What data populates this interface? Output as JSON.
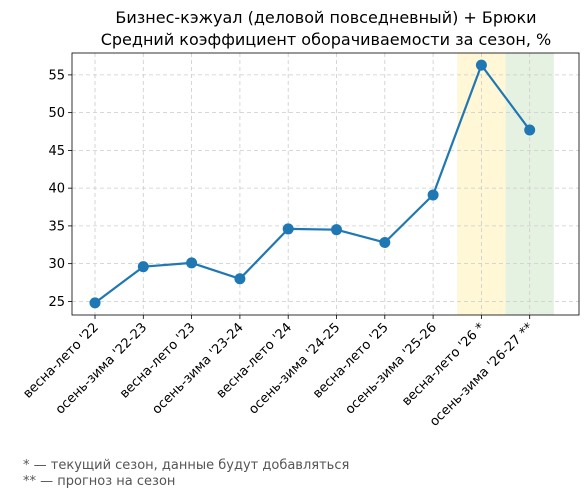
{
  "chart_data": {
    "type": "line",
    "title": "Бизнес-кэжуал (деловой повседневный) + Брюки",
    "subtitle": "Средний коэффициент оборачиваемости за сезон, %",
    "xlabel": "",
    "ylabel": "",
    "categories": [
      "весна-лето '22",
      "осень-зима '22-23",
      "весна-лето '23",
      "осень-зима '23-24",
      "весна-лето '24",
      "осень-зима '24-25",
      "весна-лето '25",
      "осень-зима '25-26",
      "весна-лето '26 *",
      "осень-зима '26-27 **"
    ],
    "series": [
      {
        "values": [
          24.8,
          29.6,
          30.1,
          28.0,
          34.6,
          34.5,
          32.8,
          39.1,
          56.3,
          47.7
        ],
        "color": "#1f77b4"
      }
    ],
    "ylim": [
      23.2,
      57.9
    ],
    "yticks": [
      25,
      30,
      35,
      40,
      45,
      50,
      55
    ],
    "grid": true,
    "highlights": [
      {
        "category_index": 8,
        "color": "#fff7d6"
      },
      {
        "category_index": 9,
        "color": "#e6f2e1"
      }
    ],
    "footnotes": [
      "* — текущий сезон, данные будут добавляться",
      "** — прогноз на сезон"
    ]
  }
}
